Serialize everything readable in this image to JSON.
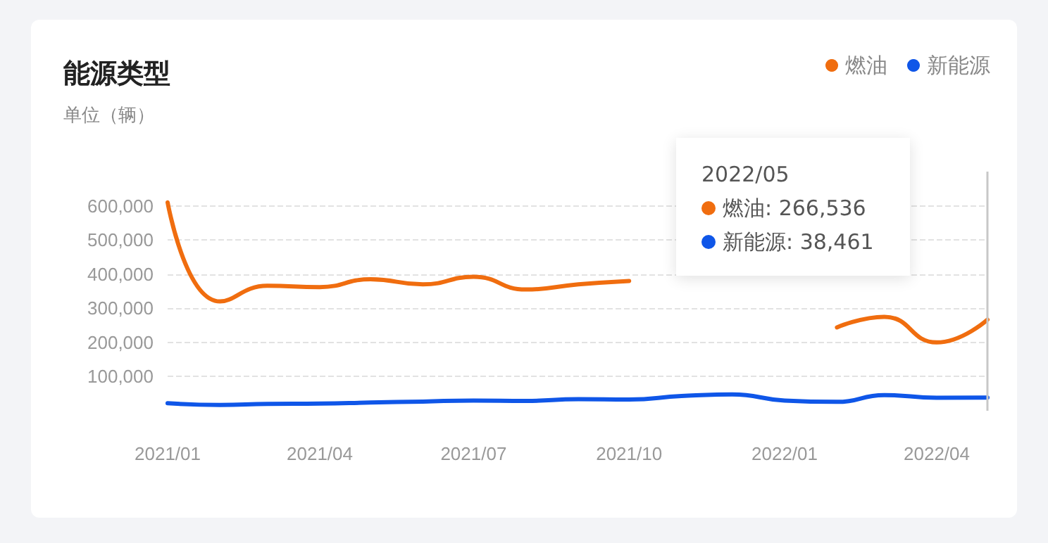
{
  "chart_data": {
    "type": "line",
    "title": "能源类型",
    "subtitle": "单位（辆）",
    "x": [
      "2021-01",
      "2021-02",
      "2021-03",
      "2021-04",
      "2021-05",
      "2021-06",
      "2021-07",
      "2021-08",
      "2021-09",
      "2021-10",
      "2021-11",
      "2021-12",
      "2022-01",
      "2022-02",
      "2022-03",
      "2022-04",
      "2022-05"
    ],
    "series": [
      {
        "name": "燃油",
        "color": "#f06d0f",
        "values": [
          610000,
          320000,
          366000,
          362000,
          385000,
          370000,
          392000,
          355000,
          370000,
          380000,
          null,
          null,
          null,
          244000,
          275000,
          200000,
          266536
        ]
      },
      {
        "name": "新能源",
        "color": "#0f56e8",
        "values": [
          22000,
          17000,
          20000,
          21000,
          24000,
          27000,
          30000,
          29000,
          34000,
          33000,
          43000,
          48000,
          30000,
          26000,
          46000,
          38000,
          38461
        ]
      }
    ],
    "xlim": [
      "2021-01",
      "2022-05"
    ],
    "xticks": [
      {
        "value": "2021-01",
        "label": "2021/01"
      },
      {
        "value": "2021-04",
        "label": "2021/04"
      },
      {
        "value": "2021-07",
        "label": "2021/07"
      },
      {
        "value": "2021-10",
        "label": "2021/10"
      },
      {
        "value": "2022-01",
        "label": "2022/01"
      },
      {
        "value": "2022-04",
        "label": "2022/04"
      }
    ],
    "ylim": [
      0,
      700000
    ],
    "yticks": [
      {
        "value": 100000,
        "label": "100,000"
      },
      {
        "value": 200000,
        "label": "200,000"
      },
      {
        "value": 300000,
        "label": "300,000"
      },
      {
        "value": 400000,
        "label": "400,000"
      },
      {
        "value": 500000,
        "label": "500,000"
      },
      {
        "value": 600000,
        "label": "600,000"
      }
    ],
    "grid": "y",
    "legend": "top right",
    "marker": "none",
    "line_style": "solid",
    "ref_lines": [
      {
        "axis": "x",
        "value": "2022-05",
        "color": "#c8c8c8"
      }
    ],
    "annotations": [
      "2022/05",
      "燃油: 266,536",
      "新能源: 38,461"
    ]
  }
}
